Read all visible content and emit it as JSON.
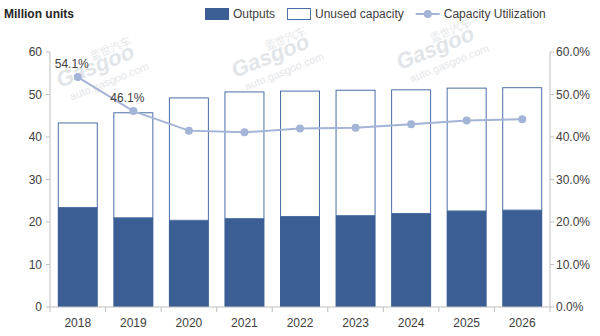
{
  "chart_data": {
    "type": "bar",
    "stacked": true,
    "y_label": "Million units",
    "legend": "top",
    "annotations": [
      "Gasgoo",
      "盖世汽车",
      "auto.gasgoo.com"
    ],
    "categories": [
      "2018",
      "2019",
      "2020",
      "2021",
      "2022",
      "2023",
      "2024",
      "2025",
      "2026"
    ],
    "series": [
      {
        "name": "Outputs",
        "type": "bar",
        "color": "#3b5f94",
        "values": [
          23.4,
          21.0,
          20.4,
          20.8,
          21.3,
          21.5,
          22.0,
          22.6,
          22.8
        ]
      },
      {
        "name": "Unused capacity",
        "type": "bar",
        "color": "#4a6fa5",
        "values": [
          19.9,
          24.7,
          28.8,
          29.8,
          29.5,
          29.5,
          29.1,
          28.9,
          28.8
        ]
      },
      {
        "name": "Capacity Utilization",
        "type": "line",
        "axis": "y2",
        "color": "#a4b4d6",
        "marker": "circle",
        "data_labels": true,
        "values": [
          54.1,
          46.1,
          41.5,
          41.1,
          42.0,
          42.2,
          43.0,
          43.9,
          44.2
        ],
        "value_labels": [
          "54.1%",
          "46.1%",
          null,
          null,
          null,
          null,
          null,
          null,
          null
        ]
      }
    ],
    "ylim": [
      0,
      60
    ],
    "yticks": [
      0,
      10,
      20,
      30,
      40,
      50,
      60
    ],
    "y2lim": [
      0,
      60
    ],
    "y2ticks": [
      {
        "value": 0,
        "label": "0.0%"
      },
      {
        "value": 10,
        "label": "10.0%"
      },
      {
        "value": 20,
        "label": "20.0%"
      },
      {
        "value": 30,
        "label": "30.0%"
      },
      {
        "value": 40,
        "label": "40.0%"
      },
      {
        "value": 50,
        "label": "50.0%"
      },
      {
        "value": 60,
        "label": "60.0%"
      }
    ]
  }
}
